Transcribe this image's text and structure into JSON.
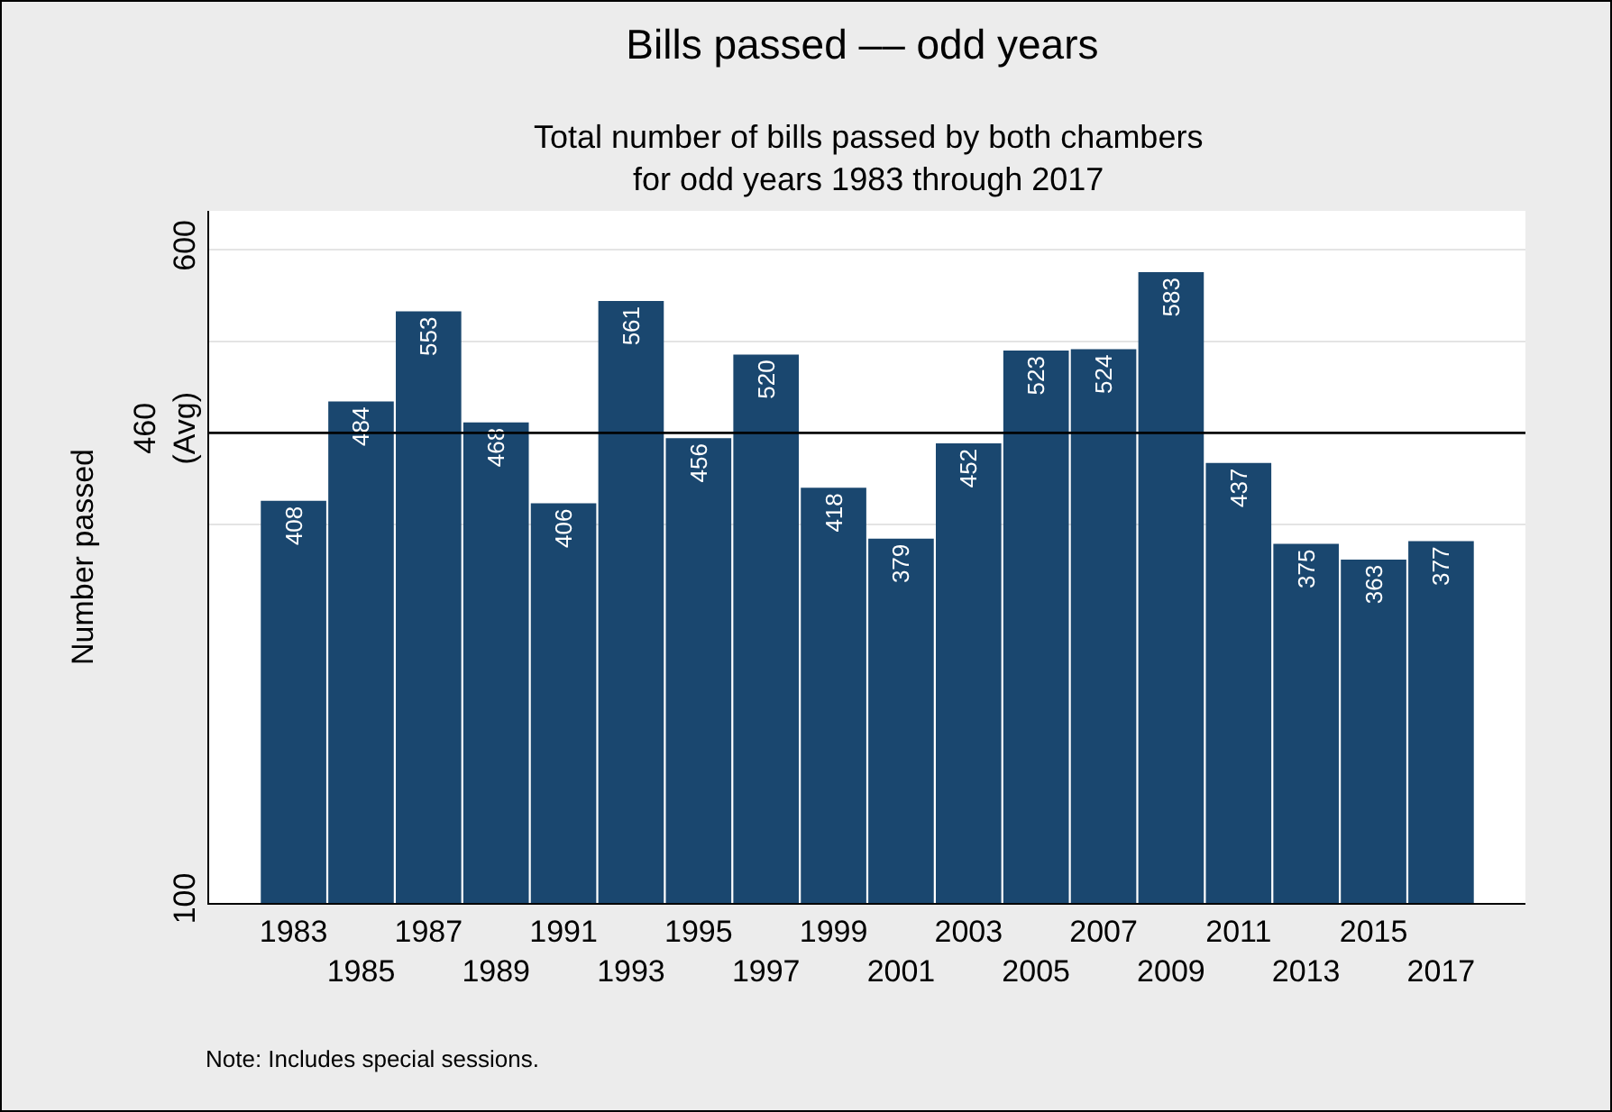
{
  "chart_data": {
    "type": "bar",
    "title": "Bills passed –– odd years",
    "subtitle": "Total number of bills passed by both chambers\nfor odd years 1983 through 2017",
    "ylabel": "Number passed",
    "annotations": [
      "Note: Includes special sessions."
    ],
    "categories": [
      "1983",
      "1985",
      "1987",
      "1989",
      "1991",
      "1993",
      "1995",
      "1997",
      "1999",
      "2001",
      "2003",
      "2005",
      "2007",
      "2009",
      "2011",
      "2013",
      "2015",
      "2017"
    ],
    "values": [
      408,
      484,
      553,
      468,
      406,
      561,
      456,
      520,
      418,
      379,
      452,
      523,
      524,
      583,
      437,
      375,
      363,
      377
    ],
    "color": "#1a476f",
    "data_labels": true,
    "ylim": [
      100,
      630
    ],
    "yticks": [
      100,
      {
        "value": 390,
        "label": null
      },
      {
        "value": 460,
        "label": "460\n(Avg)"
      },
      {
        "value": 530,
        "label": null
      },
      600
    ],
    "ref_lines": [
      {
        "axis": "y",
        "value": 460,
        "color": "#000000"
      }
    ],
    "grid": "y"
  }
}
